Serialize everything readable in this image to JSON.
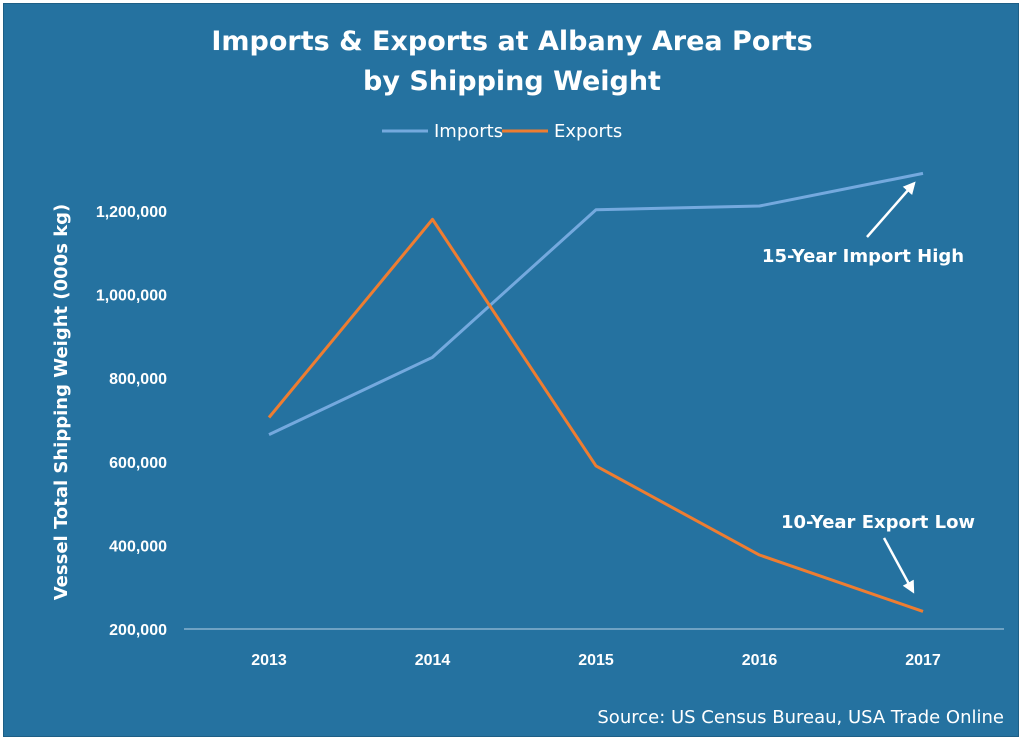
{
  "chart_data": {
    "type": "line",
    "title_line1": "Imports & Exports  at Albany Area Ports",
    "title_line2": "by Shipping Weight",
    "ylabel": "Vessel Total  Shipping Weight (000s kg)",
    "xlabel": "",
    "categories": [
      "2013",
      "2014",
      "2015",
      "2016",
      "2017"
    ],
    "y_ticks": [
      "200,000",
      "400,000",
      "600,000",
      "800,000",
      "1,000,000",
      "1,200,000"
    ],
    "ylim": [
      200000,
      1300000
    ],
    "legend_position": "top-center",
    "grid": false,
    "series": [
      {
        "name": "Imports",
        "color": "#74a9de",
        "values": [
          665000,
          850000,
          1203000,
          1212000,
          1290000
        ]
      },
      {
        "name": "Exports",
        "color": "#ee7d31",
        "values": [
          706000,
          1180000,
          590000,
          377000,
          242000
        ]
      }
    ],
    "annotations": [
      {
        "text": "15-Year Import High",
        "series": "Imports",
        "category": "2017"
      },
      {
        "text": "10-Year Export Low",
        "series": "Exports",
        "category": "2017"
      }
    ],
    "source": "Source:  US Census Bureau, USA Trade Online",
    "background_color": "#2572a0"
  }
}
